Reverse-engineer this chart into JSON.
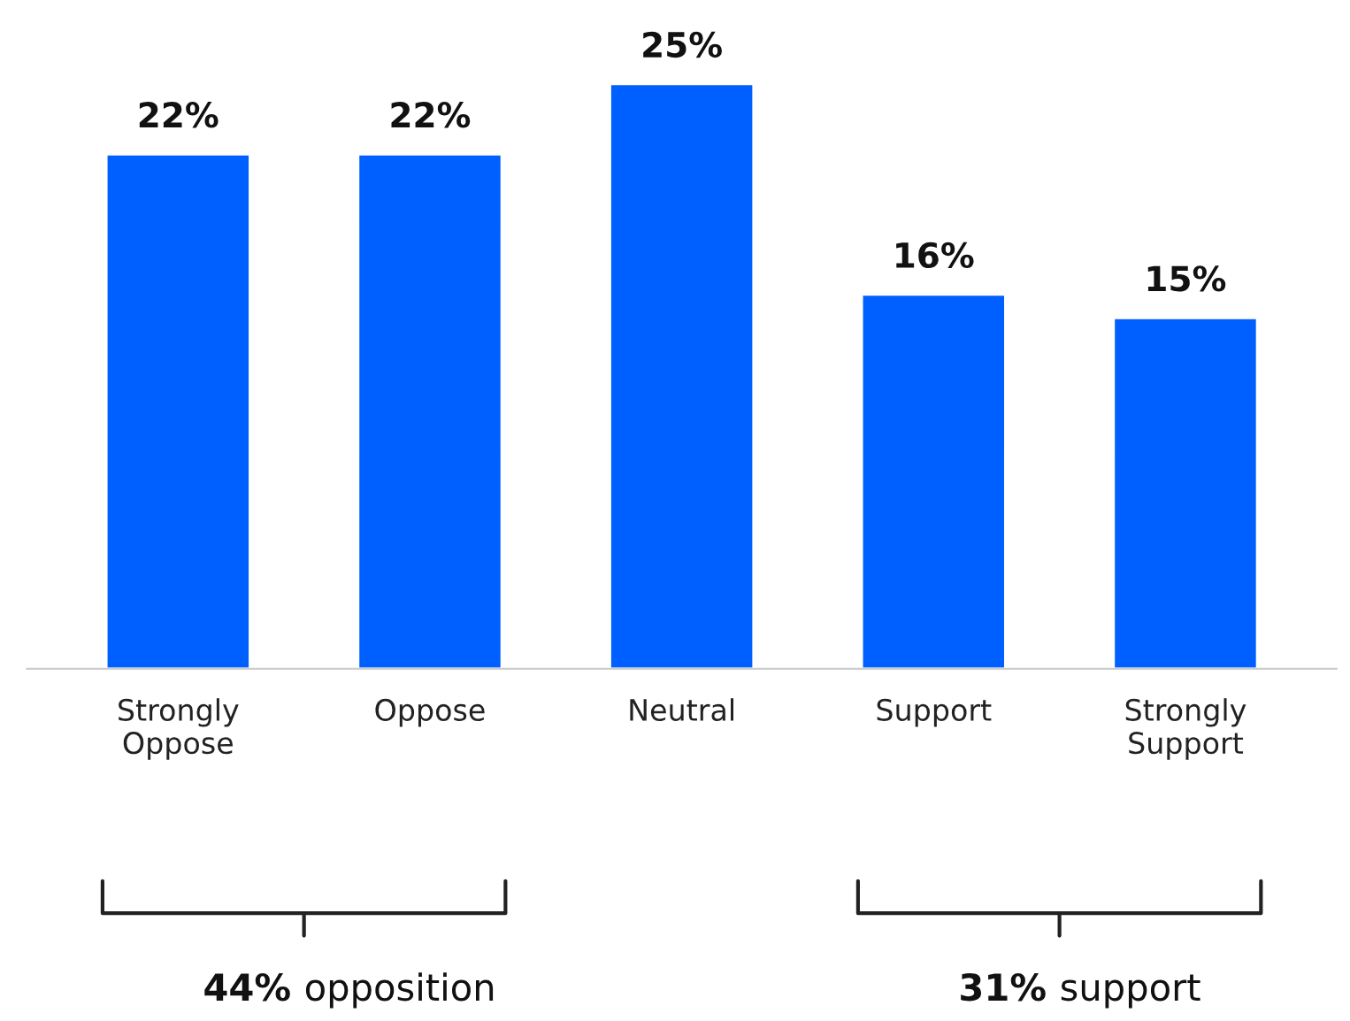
{
  "chart_data": {
    "type": "bar",
    "categories": [
      "Strongly\nOppose",
      "Oppose",
      "Neutral",
      "Support",
      "Strongly\nSupport"
    ],
    "values": [
      22,
      22,
      25,
      16,
      15
    ],
    "value_labels": [
      "22%",
      "22%",
      "25%",
      "16%",
      "15%"
    ],
    "color": "#005fff",
    "annotations": [
      "44% opposition",
      "31% support"
    ],
    "grid": false,
    "legend": false
  }
}
